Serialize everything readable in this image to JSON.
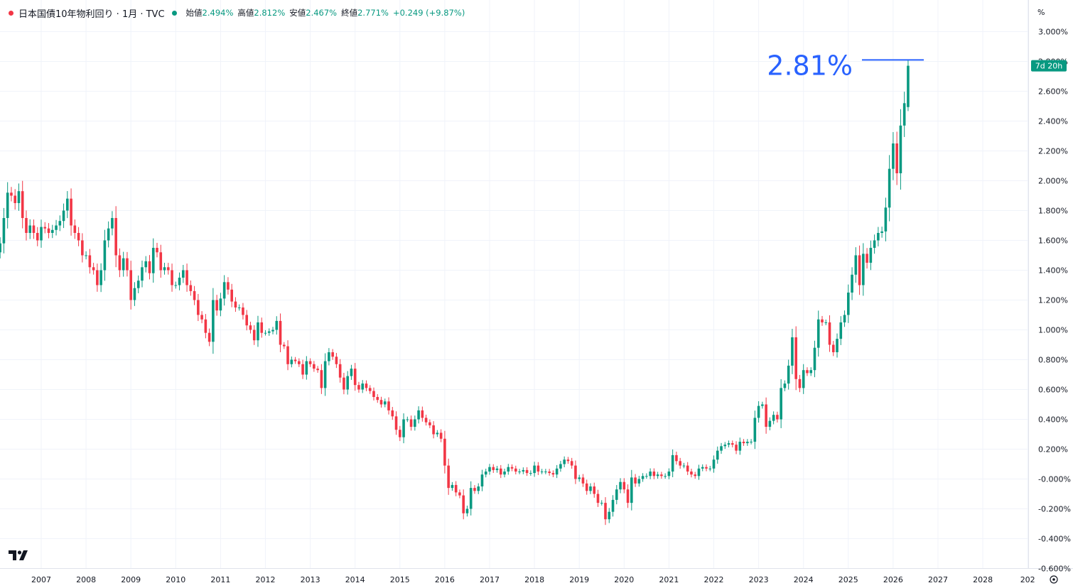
{
  "legend": {
    "title": "日本国債10年物利回り · 1月 · TVC",
    "open_label": "始値",
    "open": "2.494%",
    "high_label": "高値",
    "high": "2.812%",
    "low_label": "安値",
    "low": "2.467%",
    "close_label": "終値",
    "close": "2.771%",
    "change": "+0.249 (+9.87%)"
  },
  "annotation": {
    "text": "2.81%",
    "value": 2.81
  },
  "price_badge": {
    "text": "7d 20h",
    "value": 2.771
  },
  "colors": {
    "up": "#089981",
    "down": "#f23645",
    "annotation": "#2962ff",
    "grid": "#f0f3fa"
  },
  "chart_data": {
    "type": "candlestick",
    "title": "",
    "xlabel": "",
    "ylabel": "%",
    "grid": true,
    "ylim": [
      -0.6,
      3.0
    ],
    "x_tick_labels": [
      "2007",
      "2008",
      "2009",
      "2010",
      "2011",
      "2012",
      "2013",
      "2014",
      "2015",
      "2016",
      "2017",
      "2018",
      "2019",
      "2020",
      "2021",
      "2022",
      "2023",
      "2024",
      "2025",
      "2026",
      "2027",
      "2028",
      "202"
    ],
    "y_tick_labels": [
      "3.000%",
      "2.800%",
      "2.600%",
      "2.400%",
      "2.200%",
      "2.000%",
      "1.800%",
      "1.600%",
      "1.400%",
      "1.200%",
      "1.000%",
      "0.800%",
      "0.600%",
      "0.400%",
      "0.200%",
      "-0.000%",
      "-0.200%",
      "-0.400%",
      "-0.600%"
    ],
    "y_ticks": [
      3.0,
      2.8,
      2.6,
      2.4,
      2.2,
      2.0,
      1.8,
      1.6,
      1.4,
      1.2,
      1.0,
      0.8,
      0.6,
      0.4,
      0.2,
      0.0,
      -0.2,
      -0.4,
      -0.6
    ],
    "start": "2006-01",
    "end": "2026-05",
    "monthly_close": [
      1.52,
      1.58,
      1.75,
      1.92,
      1.9,
      1.85,
      1.93,
      1.75,
      1.65,
      1.7,
      1.65,
      1.6,
      1.69,
      1.68,
      1.65,
      1.67,
      1.7,
      1.73,
      1.8,
      1.88,
      1.7,
      1.65,
      1.6,
      1.5,
      1.5,
      1.42,
      1.4,
      1.3,
      1.4,
      1.6,
      1.68,
      1.75,
      1.5,
      1.4,
      1.48,
      1.4,
      1.2,
      1.28,
      1.33,
      1.42,
      1.46,
      1.38,
      1.55,
      1.52,
      1.4,
      1.42,
      1.4,
      1.3,
      1.3,
      1.35,
      1.4,
      1.3,
      1.26,
      1.2,
      1.1,
      1.07,
      0.98,
      0.92,
      1.2,
      1.13,
      1.21,
      1.32,
      1.27,
      1.19,
      1.15,
      1.15,
      1.1,
      1.03,
      1.0,
      0.93,
      1.05,
      0.98,
      0.98,
      0.99,
      1.0,
      1.06,
      0.9,
      0.89,
      0.77,
      0.8,
      0.79,
      0.77,
      0.7,
      0.79,
      0.77,
      0.74,
      0.73,
      0.61,
      0.79,
      0.85,
      0.82,
      0.77,
      0.68,
      0.6,
      0.69,
      0.74,
      0.63,
      0.6,
      0.64,
      0.61,
      0.59,
      0.55,
      0.53,
      0.5,
      0.52,
      0.46,
      0.42,
      0.33,
      0.28,
      0.4,
      0.4,
      0.35,
      0.4,
      0.46,
      0.41,
      0.38,
      0.36,
      0.3,
      0.31,
      0.27,
      0.09,
      -0.06,
      -0.04,
      -0.09,
      -0.11,
      -0.23,
      -0.2,
      -0.06,
      -0.08,
      -0.05,
      0.03,
      0.05,
      0.08,
      0.06,
      0.07,
      0.03,
      0.05,
      0.08,
      0.07,
      0.05,
      0.05,
      0.06,
      0.04,
      0.04,
      0.09,
      0.05,
      0.05,
      0.05,
      0.04,
      0.03,
      0.07,
      0.1,
      0.13,
      0.12,
      0.09,
      0.0,
      0.01,
      -0.03,
      -0.08,
      -0.05,
      -0.1,
      -0.16,
      -0.16,
      -0.27,
      -0.22,
      -0.14,
      -0.07,
      -0.02,
      -0.07,
      -0.16,
      0.01,
      -0.03,
      0.0,
      0.02,
      0.02,
      0.05,
      0.02,
      0.03,
      0.02,
      0.02,
      0.05,
      0.16,
      0.12,
      0.09,
      0.09,
      0.05,
      0.03,
      0.02,
      0.07,
      0.08,
      0.07,
      0.07,
      0.13,
      0.19,
      0.22,
      0.23,
      0.24,
      0.23,
      0.19,
      0.25,
      0.24,
      0.25,
      0.25,
      0.41,
      0.49,
      0.5,
      0.35,
      0.39,
      0.43,
      0.4,
      0.61,
      0.64,
      0.76,
      0.95,
      0.67,
      0.61,
      0.73,
      0.71,
      0.73,
      0.88,
      1.07,
      1.05,
      1.05,
      0.9,
      0.85,
      0.94,
      1.05,
      1.1,
      1.25,
      1.37,
      1.5,
      1.3,
      1.51,
      1.45,
      1.55,
      1.6,
      1.65,
      1.66,
      1.82,
      2.08,
      2.25,
      2.05,
      2.37,
      2.52,
      2.771
    ],
    "last_candle": {
      "date": "2026-05",
      "open": 2.494,
      "high": 2.812,
      "low": 2.467,
      "close": 2.771
    }
  }
}
